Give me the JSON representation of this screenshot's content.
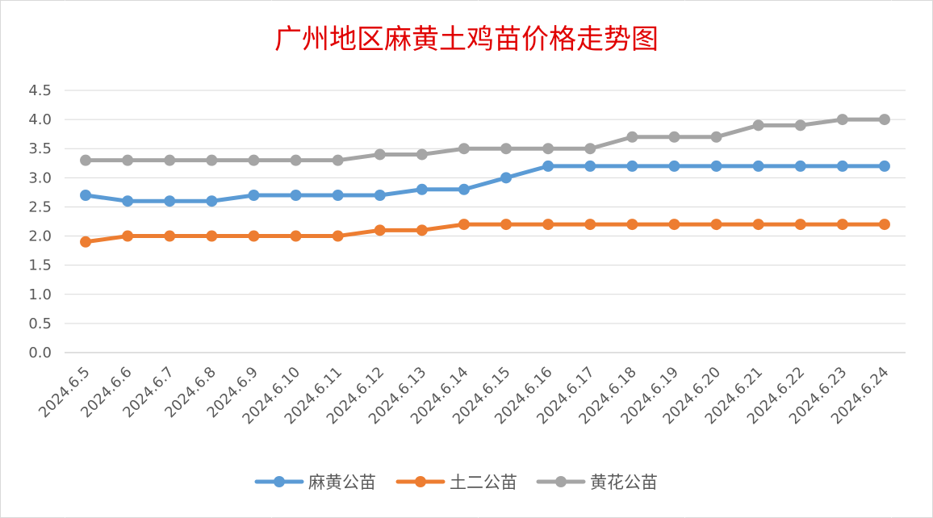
{
  "chart_data": {
    "type": "line",
    "title": "广州地区麻黄土鸡苗价格走势图",
    "categories": [
      "2024.6.5",
      "2024.6.6",
      "2024.6.7",
      "2024.6.8",
      "2024.6.9",
      "2024.6.10",
      "2024.6.11",
      "2024.6.12",
      "2024.6.13",
      "2024.6.14",
      "2024.6.15",
      "2024.6.16",
      "2024.6.17",
      "2024.6.18",
      "2024.6.19",
      "2024.6.20",
      "2024.6.21",
      "2024.6.22",
      "2024.6.23",
      "2024.6.24"
    ],
    "y_ticks": [
      "0.0",
      "0.5",
      "1.0",
      "1.5",
      "2.0",
      "2.5",
      "3.0",
      "3.5",
      "4.0",
      "4.5"
    ],
    "ylim": [
      0,
      4.5
    ],
    "grid": true,
    "legend_position": "bottom",
    "series": [
      {
        "name": "麻黄公苗",
        "color": "#5b9bd5",
        "values": [
          2.7,
          2.6,
          2.6,
          2.6,
          2.7,
          2.7,
          2.7,
          2.7,
          2.8,
          2.8,
          3.0,
          3.2,
          3.2,
          3.2,
          3.2,
          3.2,
          3.2,
          3.2,
          3.2,
          3.2
        ]
      },
      {
        "name": "土二公苗",
        "color": "#ed7d31",
        "values": [
          1.9,
          2.0,
          2.0,
          2.0,
          2.0,
          2.0,
          2.0,
          2.1,
          2.1,
          2.2,
          2.2,
          2.2,
          2.2,
          2.2,
          2.2,
          2.2,
          2.2,
          2.2,
          2.2,
          2.2
        ]
      },
      {
        "name": "黄花公苗",
        "color": "#a5a5a5",
        "values": [
          3.3,
          3.3,
          3.3,
          3.3,
          3.3,
          3.3,
          3.3,
          3.4,
          3.4,
          3.5,
          3.5,
          3.5,
          3.5,
          3.7,
          3.7,
          3.7,
          3.9,
          3.9,
          4.0,
          4.0
        ]
      }
    ]
  }
}
